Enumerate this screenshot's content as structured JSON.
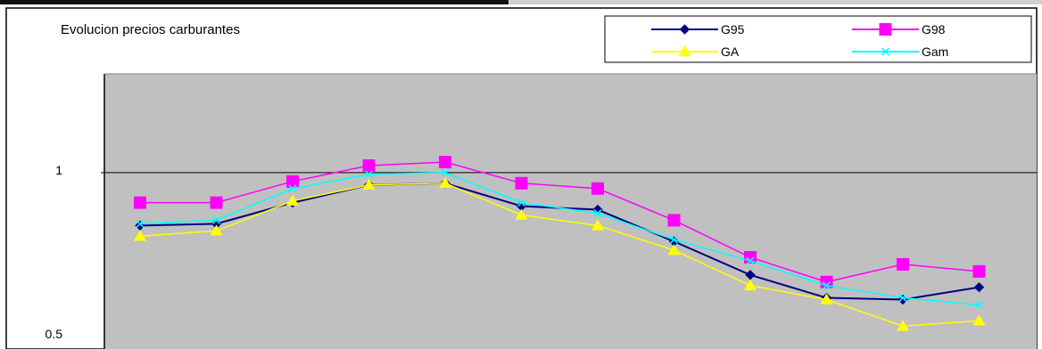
{
  "chart_data": {
    "type": "line",
    "title": "Evolucion precios carburantes",
    "xlabel": "",
    "ylabel": "",
    "ylim": [
      0.5,
      1.28
    ],
    "yticks": [
      "1",
      "0.5"
    ],
    "ytick_values": [
      1,
      0.5
    ],
    "grid": "horizontal line at 1",
    "legend_position": "top-right",
    "plot_background": "#c0c0c0",
    "x": [
      1,
      2,
      3,
      4,
      5,
      6,
      7,
      8,
      9,
      10,
      11,
      12
    ],
    "series": [
      {
        "name": "G95",
        "color": "#000080",
        "marker": "diamond",
        "values": [
          0.85,
          0.855,
          0.915,
          0.965,
          0.97,
          0.905,
          0.895,
          0.805,
          0.71,
          0.645,
          0.64,
          0.675
        ]
      },
      {
        "name": "G98",
        "color": "#ff00ff",
        "marker": "square",
        "values": [
          0.915,
          0.915,
          0.975,
          1.02,
          1.03,
          0.97,
          0.955,
          0.865,
          0.76,
          0.69,
          0.74,
          0.72
        ]
      },
      {
        "name": "GA",
        "color": "#ffff00",
        "marker": "triangle",
        "values": [
          0.82,
          0.835,
          0.92,
          0.965,
          0.97,
          0.88,
          0.85,
          0.78,
          0.68,
          0.64,
          0.565,
          0.58
        ]
      },
      {
        "name": "Gam",
        "color": "#00ffff",
        "marker": "x",
        "values": [
          0.855,
          0.865,
          0.955,
          0.995,
          1.0,
          0.915,
          0.885,
          0.81,
          0.75,
          0.68,
          0.645,
          0.625
        ]
      }
    ]
  }
}
